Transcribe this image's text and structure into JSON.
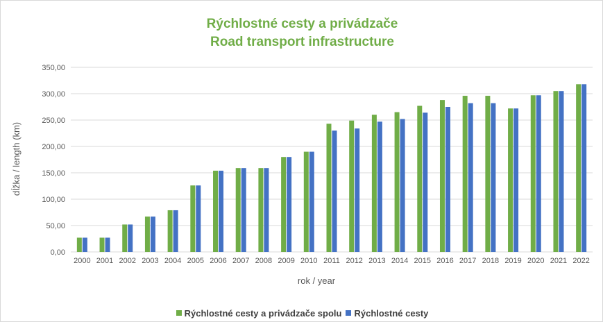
{
  "chart_data": {
    "type": "bar",
    "title": "Rýchlostné cesty a privádzače",
    "subtitle": "Road transport infrastructure",
    "xlabel": "rok / year",
    "ylabel": "dĺžka / length (km)",
    "ylim": [
      0,
      350
    ],
    "yticks": [
      "0,00",
      "50,00",
      "100,00",
      "150,00",
      "200,00",
      "250,00",
      "300,00",
      "350,00"
    ],
    "grid": true,
    "legend_position": "bottom",
    "categories": [
      "2000",
      "2001",
      "2002",
      "2003",
      "2004",
      "2005",
      "2006",
      "2007",
      "2008",
      "2009",
      "2010",
      "2011",
      "2012",
      "2013",
      "2014",
      "2015",
      "2016",
      "2017",
      "2018",
      "2019",
      "2020",
      "2021",
      "2022"
    ],
    "series": [
      {
        "name": "Rýchlostné cesty a privádzače spolu",
        "color": "#70ad47",
        "values": [
          27,
          27,
          52,
          67,
          79,
          126,
          154,
          159,
          159,
          180,
          190,
          243,
          249,
          260,
          265,
          277,
          288,
          296,
          296,
          272,
          297,
          305,
          318
        ]
      },
      {
        "name": "Rýchlostné cesty",
        "color": "#4472c4",
        "values": [
          27,
          27,
          52,
          67,
          79,
          126,
          154,
          159,
          159,
          180,
          190,
          230,
          234,
          247,
          252,
          264,
          275,
          282,
          282,
          272,
          297,
          305,
          318
        ]
      }
    ]
  }
}
